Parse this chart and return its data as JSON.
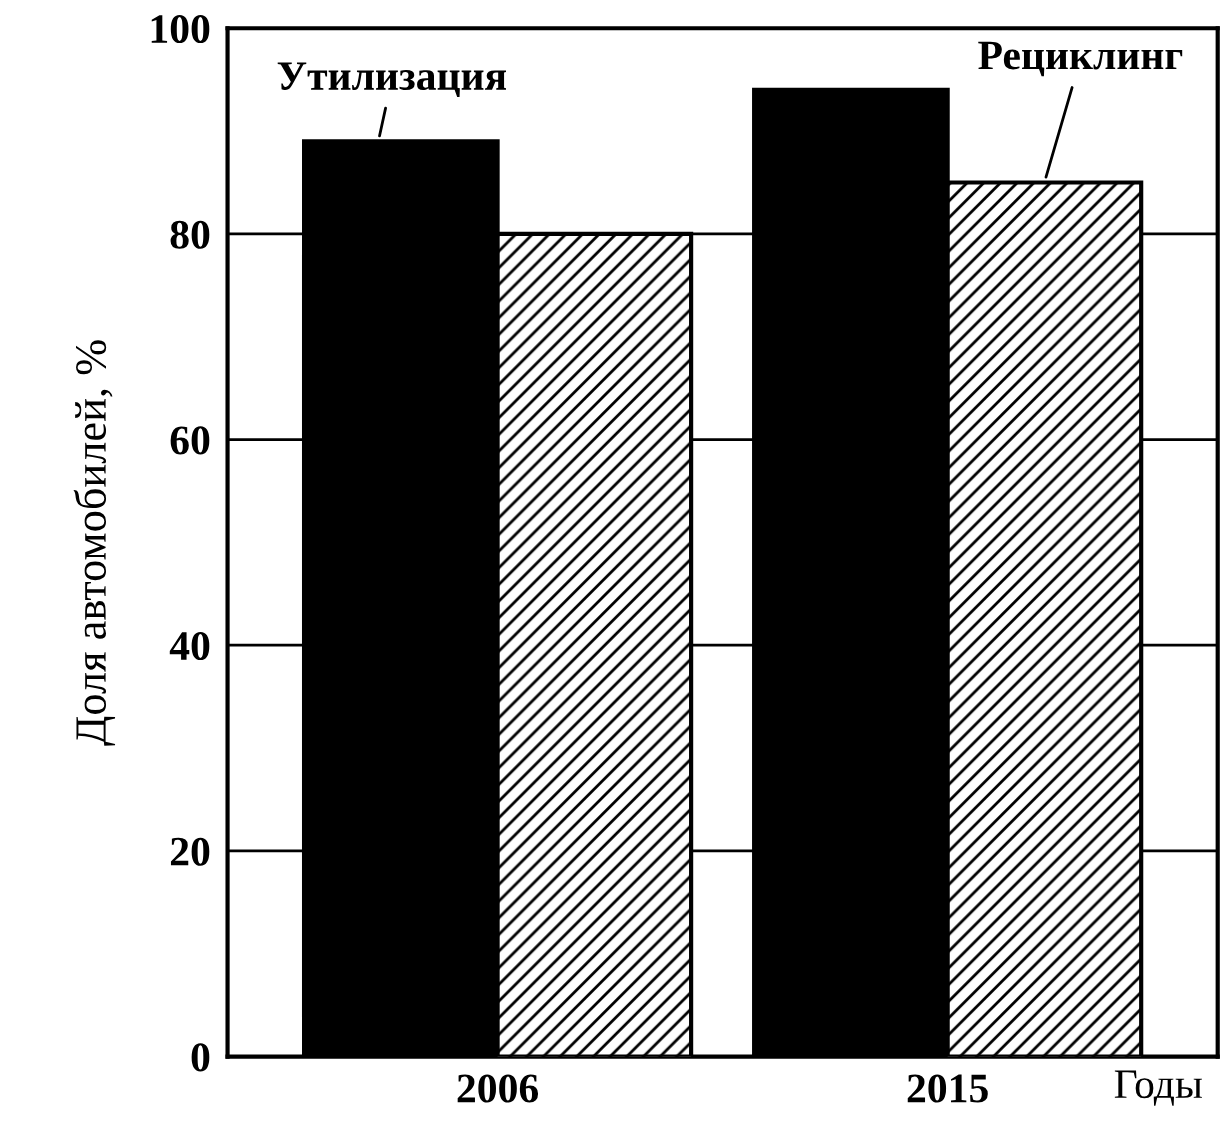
{
  "chart_data": {
    "type": "bar",
    "categories": [
      "2006",
      "2015"
    ],
    "series": [
      {
        "name": "Утилизация",
        "color": "#000000",
        "values": [
          89,
          94
        ]
      },
      {
        "name": "Рециклинг",
        "color": "#000000",
        "values": [
          80,
          85
        ]
      }
    ],
    "xlabel": "Годы",
    "ylabel": "Доля автомобилей, %",
    "ylim": [
      0,
      100
    ],
    "yticks": [
      0,
      20,
      40,
      60,
      80,
      100
    ],
    "grid": "y"
  }
}
